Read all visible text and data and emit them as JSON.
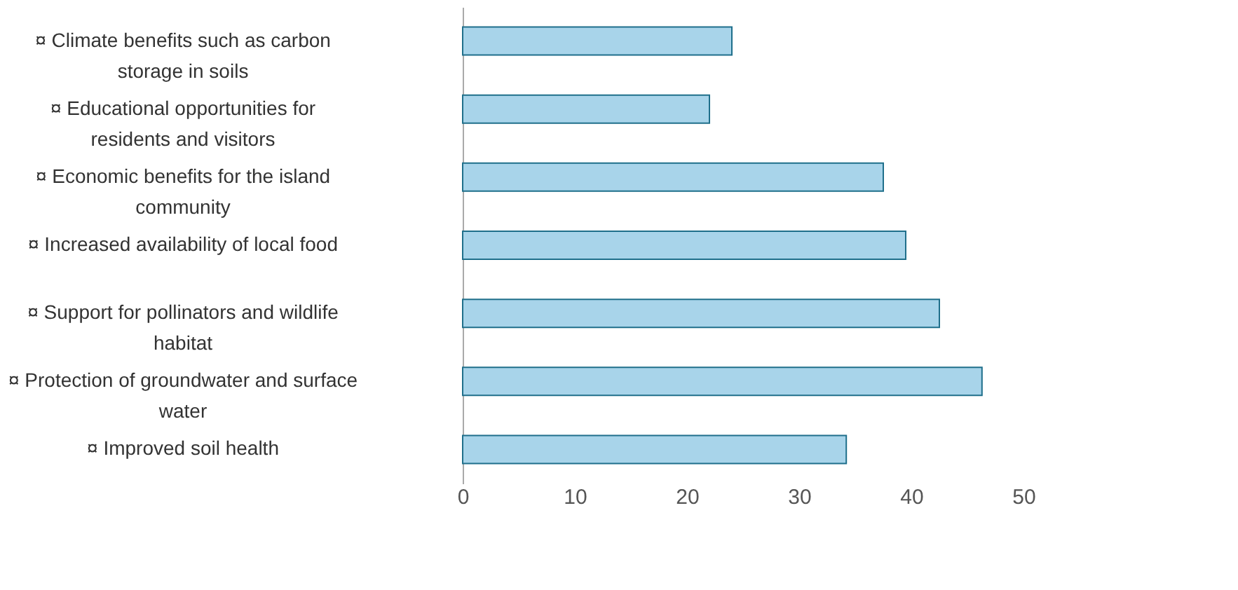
{
  "chart_data": {
    "type": "bar",
    "orientation": "horizontal",
    "categories": [
      "¤ Climate benefits such as carbon storage in soils",
      "¤ Educational opportunities for residents and visitors",
      "¤ Economic benefits for the island community",
      "¤ Increased availability of local food",
      "¤ Support for pollinators and wildlife habitat",
      "¤ Protection of groundwater and surface water",
      "¤ Improved soil health"
    ],
    "values": [
      24,
      22,
      37.5,
      39.5,
      42.5,
      46.3,
      34.2
    ],
    "color": "#a8d4ea",
    "xlim": [
      0,
      50
    ],
    "xticks": [
      0,
      10,
      20,
      30,
      40,
      50
    ],
    "grid": false
  }
}
